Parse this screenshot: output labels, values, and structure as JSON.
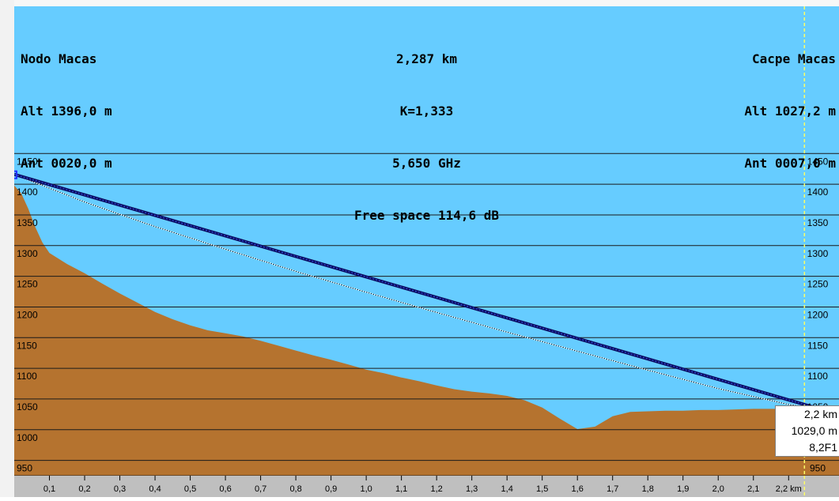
{
  "header": {
    "left": [
      "Nodo Macas",
      "Alt 1396,0 m",
      "Ant 0020,0 m"
    ],
    "center": [
      "2,287 km",
      "K=1,333",
      "5,650 GHz",
      "Free space 114,6 dB"
    ],
    "right": [
      "Cacpe Macas",
      "Alt 1027,2 m",
      "Ant 0007,0 m"
    ]
  },
  "cursor": {
    "distance": "2,2 km",
    "altitude": "1029,0 m",
    "fresnel": "8,2F1",
    "x_km": 2.245
  },
  "colors": {
    "sky": "#66ccff",
    "terrain": "#b5732f",
    "grid": "#1a1a1a",
    "los": "#0a0a60",
    "axis_band": "#bfbfbf",
    "cursor_line": "#ffff66"
  },
  "chart_data": {
    "type": "area",
    "title": "",
    "xlabel": "km",
    "ylabel": "",
    "xlim": [
      0,
      2.287
    ],
    "ylim": [
      925,
      1480
    ],
    "y_ticks": [
      950,
      1000,
      1050,
      1100,
      1150,
      1200,
      1250,
      1300,
      1350,
      1400,
      1450
    ],
    "x_ticks": [
      0.1,
      0.2,
      0.3,
      0.4,
      0.5,
      0.6,
      0.7,
      0.8,
      0.9,
      1.0,
      1.1,
      1.2,
      1.3,
      1.4,
      1.5,
      1.6,
      1.7,
      1.8,
      1.9,
      2.0,
      2.1,
      2.2
    ],
    "x_tick_labels": [
      "0,1",
      "0,2",
      "0,3",
      "0,4",
      "0,5",
      "0,6",
      "0,7",
      "0,8",
      "0,9",
      "1,0",
      "1,1",
      "1,2",
      "1,3",
      "1,4",
      "1,5",
      "1,6",
      "1,7",
      "1,8",
      "1,9",
      "2,0",
      "2,1",
      "2,2 km"
    ],
    "y_tick_labels": [
      "950",
      "1000",
      "1050",
      "1100",
      "1150",
      "1200",
      "1250",
      "1300",
      "1350",
      "1400",
      "1450"
    ],
    "grid": true,
    "series": [
      {
        "kind": "terrain",
        "x": [
          0.0,
          0.02,
          0.04,
          0.06,
          0.08,
          0.1,
          0.15,
          0.2,
          0.25,
          0.3,
          0.35,
          0.4,
          0.45,
          0.5,
          0.55,
          0.6,
          0.65,
          0.7,
          0.75,
          0.8,
          0.85,
          0.9,
          0.95,
          1.0,
          1.05,
          1.1,
          1.15,
          1.2,
          1.25,
          1.3,
          1.35,
          1.4,
          1.45,
          1.5,
          1.55,
          1.6,
          1.65,
          1.7,
          1.75,
          1.8,
          1.85,
          1.9,
          1.95,
          2.0,
          2.05,
          2.1,
          2.15,
          2.2,
          2.25,
          2.287
        ],
        "y": [
          1398,
          1385,
          1360,
          1330,
          1305,
          1288,
          1270,
          1255,
          1238,
          1222,
          1207,
          1192,
          1180,
          1170,
          1162,
          1157,
          1152,
          1145,
          1137,
          1129,
          1121,
          1114,
          1106,
          1098,
          1092,
          1085,
          1079,
          1072,
          1066,
          1062,
          1059,
          1055,
          1048,
          1036,
          1018,
          1001,
          1005,
          1022,
          1029,
          1030,
          1031,
          1031,
          1032,
          1032,
          1033,
          1034,
          1034,
          1034,
          1034,
          1027
        ]
      },
      {
        "kind": "line-of-sight",
        "x": [
          0.0,
          2.287
        ],
        "y": [
          1416,
          1034
        ]
      },
      {
        "kind": "fresnel",
        "x": [
          0.0,
          0.2,
          0.4,
          0.6,
          0.8,
          1.0,
          1.2,
          1.4,
          1.6,
          1.8,
          2.0,
          2.2,
          2.287
        ],
        "y": [
          1416,
          1371,
          1331,
          1294,
          1258,
          1224,
          1191,
          1159,
          1128,
          1097,
          1067,
          1041,
          1034
        ]
      }
    ]
  }
}
